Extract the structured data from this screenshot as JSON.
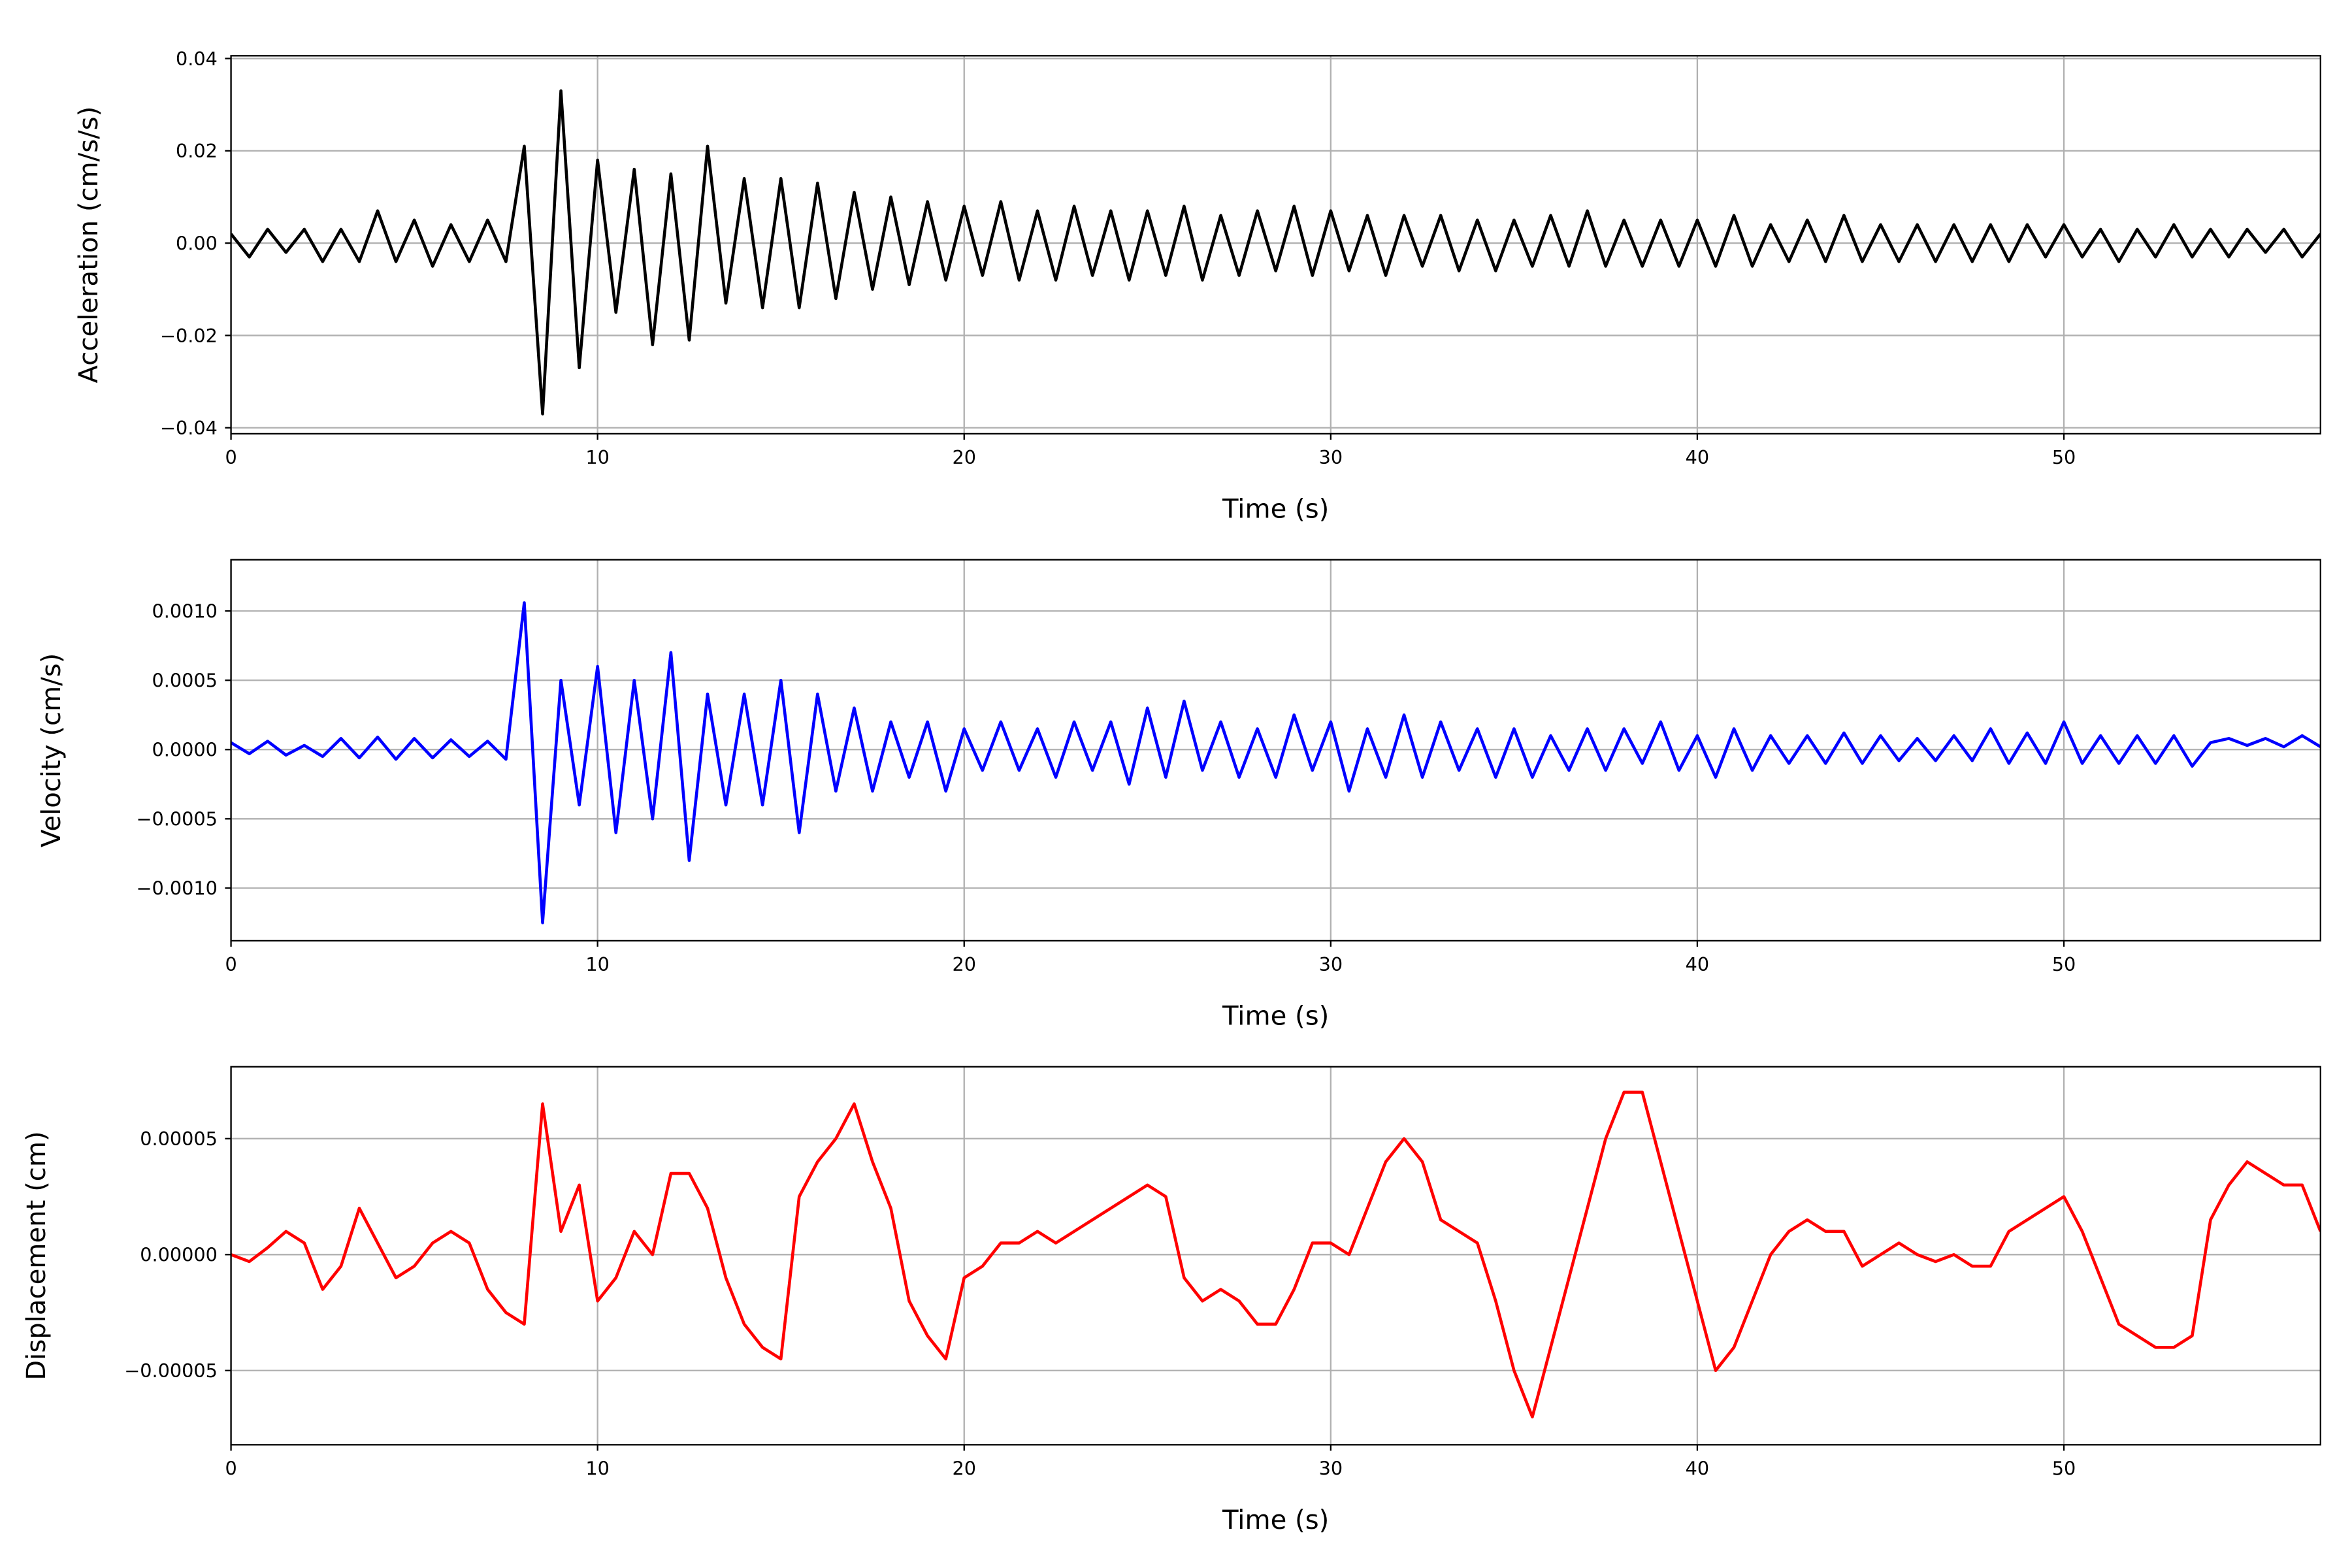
{
  "chart_data": [
    {
      "type": "line",
      "xlabel": "Time (s)",
      "ylabel": "Acceleration (cm/s/s)",
      "color": "#000000",
      "grid": true,
      "xlim": [
        0,
        57
      ],
      "xticks": [
        0,
        10,
        20,
        30,
        40,
        50
      ],
      "ylim": [
        -0.0413,
        0.0406
      ],
      "yticks": [
        {
          "value": -0.04,
          "label": "−0.04"
        },
        {
          "value": -0.02,
          "label": "−0.02"
        },
        {
          "value": 0,
          "label": "0.00"
        },
        0.02,
        0.04
      ],
      "x": [
        0,
        0.5,
        1,
        1.5,
        2,
        2.5,
        3,
        3.5,
        4,
        4.5,
        5,
        5.5,
        6,
        6.5,
        7,
        7.5,
        8,
        8.5,
        9,
        9.5,
        10,
        10.5,
        11,
        11.5,
        12,
        12.5,
        13,
        13.5,
        14,
        14.5,
        15,
        15.5,
        16,
        16.5,
        17,
        17.5,
        18,
        18.5,
        19,
        19.5,
        20,
        20.5,
        21,
        21.5,
        22,
        22.5,
        23,
        23.5,
        24,
        24.5,
        25,
        25.5,
        26,
        26.5,
        27,
        27.5,
        28,
        28.5,
        29,
        29.5,
        30,
        30.5,
        31,
        31.5,
        32,
        32.5,
        33,
        33.5,
        34,
        34.5,
        35,
        35.5,
        36,
        36.5,
        37,
        37.5,
        38,
        38.5,
        39,
        39.5,
        40,
        40.5,
        41,
        41.5,
        42,
        42.5,
        43,
        43.5,
        44,
        44.5,
        45,
        45.5,
        46,
        46.5,
        47,
        47.5,
        48,
        48.5,
        49,
        49.5,
        50,
        50.5,
        51,
        51.5,
        52,
        52.5,
        53,
        53.5,
        54,
        54.5,
        55,
        55.5,
        56,
        56.5,
        57
      ],
      "values": [
        0.002,
        -0.003,
        0.003,
        -0.002,
        0.003,
        -0.004,
        0.003,
        -0.004,
        0.007,
        -0.004,
        0.005,
        -0.005,
        0.004,
        -0.004,
        0.005,
        -0.004,
        0.021,
        -0.037,
        0.033,
        -0.027,
        0.018,
        -0.015,
        0.016,
        -0.022,
        0.015,
        -0.021,
        0.021,
        -0.013,
        0.014,
        -0.014,
        0.014,
        -0.014,
        0.013,
        -0.012,
        0.011,
        -0.01,
        0.01,
        -0.009,
        0.009,
        -0.008,
        0.008,
        -0.007,
        0.009,
        -0.008,
        0.007,
        -0.008,
        0.008,
        -0.007,
        0.007,
        -0.008,
        0.007,
        -0.007,
        0.008,
        -0.008,
        0.006,
        -0.007,
        0.007,
        -0.006,
        0.008,
        -0.007,
        0.007,
        -0.006,
        0.006,
        -0.007,
        0.006,
        -0.005,
        0.006,
        -0.006,
        0.005,
        -0.006,
        0.005,
        -0.005,
        0.006,
        -0.005,
        0.007,
        -0.005,
        0.005,
        -0.005,
        0.005,
        -0.005,
        0.005,
        -0.005,
        0.006,
        -0.005,
        0.004,
        -0.004,
        0.005,
        -0.004,
        0.006,
        -0.004,
        0.004,
        -0.004,
        0.004,
        -0.004,
        0.004,
        -0.004,
        0.004,
        -0.004,
        0.004,
        -0.003,
        0.004,
        -0.003,
        0.003,
        -0.004,
        0.003,
        -0.003,
        0.004,
        -0.003,
        0.003,
        -0.003,
        0.003,
        -0.002,
        0.003,
        -0.003,
        0.002
      ]
    },
    {
      "type": "line",
      "xlabel": "Time (s)",
      "ylabel": "Velocity (cm/s)",
      "color": "#0000ff",
      "grid": true,
      "xlim": [
        0,
        57
      ],
      "xticks": [
        0,
        10,
        20,
        30,
        40,
        50
      ],
      "ylim": [
        -0.00138,
        0.00137
      ],
      "yticks": [
        {
          "value": -0.001,
          "label": "−0.0010"
        },
        {
          "value": -0.0005,
          "label": "−0.0005"
        },
        {
          "value": 0,
          "label": "0.0000"
        },
        0.0005,
        {
          "value": 0.001,
          "label": "0.0010"
        }
      ],
      "x": [
        0,
        0.5,
        1,
        1.5,
        2,
        2.5,
        3,
        3.5,
        4,
        4.5,
        5,
        5.5,
        6,
        6.5,
        7,
        7.5,
        8,
        8.5,
        9,
        9.5,
        10,
        10.5,
        11,
        11.5,
        12,
        12.5,
        13,
        13.5,
        14,
        14.5,
        15,
        15.5,
        16,
        16.5,
        17,
        17.5,
        18,
        18.5,
        19,
        19.5,
        20,
        20.5,
        21,
        21.5,
        22,
        22.5,
        23,
        23.5,
        24,
        24.5,
        25,
        25.5,
        26,
        26.5,
        27,
        27.5,
        28,
        28.5,
        29,
        29.5,
        30,
        30.5,
        31,
        31.5,
        32,
        32.5,
        33,
        33.5,
        34,
        34.5,
        35,
        35.5,
        36,
        36.5,
        37,
        37.5,
        38,
        38.5,
        39,
        39.5,
        40,
        40.5,
        41,
        41.5,
        42,
        42.5,
        43,
        43.5,
        44,
        44.5,
        45,
        45.5,
        46,
        46.5,
        47,
        47.5,
        48,
        48.5,
        49,
        49.5,
        50,
        50.5,
        51,
        51.5,
        52,
        52.5,
        53,
        53.5,
        54,
        54.5,
        55,
        55.5,
        56,
        56.5,
        57
      ],
      "values": [
        5e-05,
        -3e-05,
        6e-05,
        -4e-05,
        3e-05,
        -5e-05,
        8e-05,
        -6e-05,
        9e-05,
        -7e-05,
        8e-05,
        -6e-05,
        7e-05,
        -5e-05,
        6e-05,
        -7e-05,
        0.00106,
        -0.00125,
        0.0005,
        -0.0004,
        0.0006,
        -0.0006,
        0.0005,
        -0.0005,
        0.0007,
        -0.0008,
        0.0004,
        -0.0004,
        0.0004,
        -0.0004,
        0.0005,
        -0.0006,
        0.0004,
        -0.0003,
        0.0003,
        -0.0003,
        0.0002,
        -0.0002,
        0.0002,
        -0.0003,
        0.00015,
        -0.00015,
        0.0002,
        -0.00015,
        0.00015,
        -0.0002,
        0.0002,
        -0.00015,
        0.0002,
        -0.00025,
        0.0003,
        -0.0002,
        0.00035,
        -0.00015,
        0.0002,
        -0.0002,
        0.00015,
        -0.0002,
        0.00025,
        -0.00015,
        0.0002,
        -0.0003,
        0.00015,
        -0.0002,
        0.00025,
        -0.0002,
        0.0002,
        -0.00015,
        0.00015,
        -0.0002,
        0.00015,
        -0.0002,
        0.0001,
        -0.00015,
        0.00015,
        -0.00015,
        0.00015,
        -0.0001,
        0.0002,
        -0.00015,
        0.0001,
        -0.0002,
        0.00015,
        -0.00015,
        0.0001,
        -0.0001,
        0.0001,
        -0.0001,
        0.00012,
        -0.0001,
        0.0001,
        -8e-05,
        8e-05,
        -8e-05,
        0.0001,
        -8e-05,
        0.00015,
        -0.0001,
        0.00012,
        -0.0001,
        0.0002,
        -0.0001,
        0.0001,
        -0.0001,
        0.0001,
        -0.0001,
        0.0001,
        -0.00012,
        5e-05,
        8e-05,
        3e-05,
        8e-05,
        2e-05,
        0.0001,
        2e-05
      ]
    },
    {
      "type": "line",
      "xlabel": "Time (s)",
      "ylabel": "Displacement (cm)",
      "color": "#ff0000",
      "grid": true,
      "xlim": [
        0,
        57
      ],
      "xticks": [
        0,
        10,
        20,
        30,
        40,
        50
      ],
      "ylim": [
        -8.2e-05,
        8.1e-05
      ],
      "yticks": [
        {
          "value": -5e-05,
          "label": "−0.00005"
        },
        {
          "value": 0,
          "label": "0.00000"
        },
        5e-05
      ],
      "x": [
        0,
        0.5,
        1,
        1.5,
        2,
        2.5,
        3,
        3.5,
        4,
        4.5,
        5,
        5.5,
        6,
        6.5,
        7,
        7.5,
        8,
        8.5,
        9,
        9.5,
        10,
        10.5,
        11,
        11.5,
        12,
        12.5,
        13,
        13.5,
        14,
        14.5,
        15,
        15.5,
        16,
        16.5,
        17,
        17.5,
        18,
        18.5,
        19,
        19.5,
        20,
        20.5,
        21,
        21.5,
        22,
        22.5,
        23,
        23.5,
        24,
        24.5,
        25,
        25.5,
        26,
        26.5,
        27,
        27.5,
        28,
        28.5,
        29,
        29.5,
        30,
        30.5,
        31,
        31.5,
        32,
        32.5,
        33,
        33.5,
        34,
        34.5,
        35,
        35.5,
        36,
        36.5,
        37,
        37.5,
        38,
        38.5,
        39,
        39.5,
        40,
        40.5,
        41,
        41.5,
        42,
        42.5,
        43,
        43.5,
        44,
        44.5,
        45,
        45.5,
        46,
        46.5,
        47,
        47.5,
        48,
        48.5,
        49,
        49.5,
        50,
        50.5,
        51,
        51.5,
        52,
        52.5,
        53,
        53.5,
        54,
        54.5,
        55,
        55.5,
        56,
        56.5,
        57
      ],
      "values": [
        0,
        -3e-06,
        3e-06,
        1e-05,
        5e-06,
        -1.5e-05,
        -5e-06,
        2e-05,
        5e-06,
        -1e-05,
        -5e-06,
        5e-06,
        1e-05,
        5e-06,
        -1.5e-05,
        -2.5e-05,
        -3e-05,
        6.5e-05,
        1e-05,
        3e-05,
        -2e-05,
        -1e-05,
        1e-05,
        0,
        3.5e-05,
        3.5e-05,
        2e-05,
        -1e-05,
        -3e-05,
        -4e-05,
        -4.5e-05,
        2.5e-05,
        4e-05,
        5e-05,
        6.5e-05,
        4e-05,
        2e-05,
        -2e-05,
        -3.5e-05,
        -4.5e-05,
        -1e-05,
        -5e-06,
        5e-06,
        5e-06,
        1e-05,
        5e-06,
        1e-05,
        1.5e-05,
        2e-05,
        2.5e-05,
        3e-05,
        2.5e-05,
        -1e-05,
        -2e-05,
        -1.5e-05,
        -2e-05,
        -3e-05,
        -3e-05,
        -1.5e-05,
        5e-06,
        5e-06,
        0,
        2e-05,
        4e-05,
        5e-05,
        4e-05,
        1.5e-05,
        1e-05,
        5e-06,
        -2e-05,
        -5e-05,
        -7e-05,
        -4e-05,
        -1e-05,
        2e-05,
        5e-05,
        7e-05,
        7e-05,
        4e-05,
        1e-05,
        -2e-05,
        -5e-05,
        -4e-05,
        -2e-05,
        0,
        1e-05,
        1.5e-05,
        1e-05,
        1e-05,
        -5e-06,
        0,
        5e-06,
        0,
        -3e-06,
        0,
        -5e-06,
        -5e-06,
        1e-05,
        1.5e-05,
        2e-05,
        2.5e-05,
        1e-05,
        -1e-05,
        -3e-05,
        -3.5e-05,
        -4e-05,
        -4e-05,
        -3.5e-05,
        1.5e-05,
        3e-05,
        4e-05,
        3.5e-05,
        3e-05,
        3e-05,
        1e-05
      ]
    }
  ]
}
